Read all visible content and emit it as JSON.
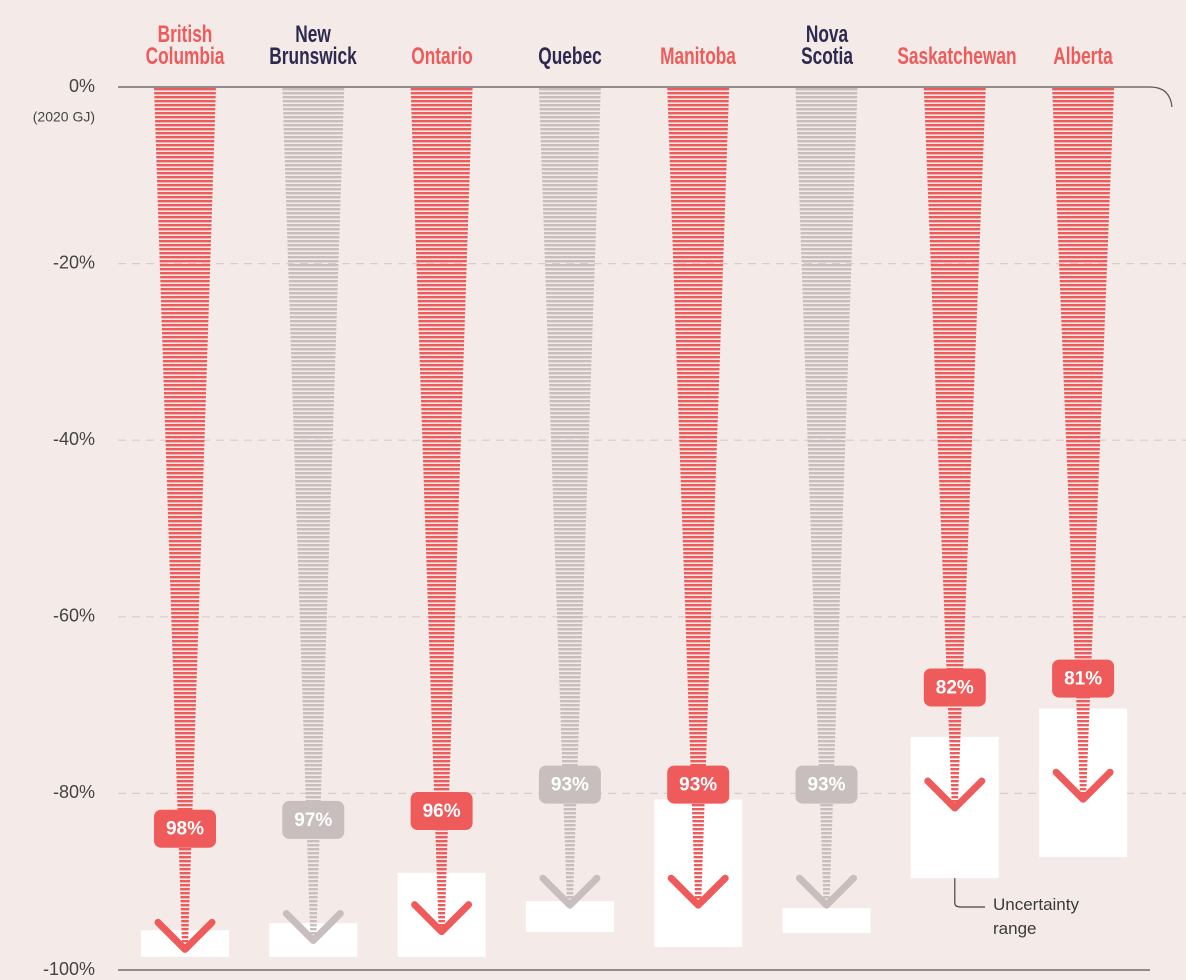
{
  "chart_data": {
    "type": "arrow",
    "categories": [
      "British\nColumbia",
      "New\nBrunswick",
      "Ontario",
      "Quebec",
      "Manitoba",
      "Nova\nScotia",
      "Saskatchewan",
      "Alberta"
    ],
    "colors": [
      "#ef5b5b",
      "#c9bebe",
      "#ef5b5b",
      "#c9bebe",
      "#ef5b5b",
      "#c9bebe",
      "#ef5b5b",
      "#ef5b5b"
    ],
    "label_colors": [
      "#ef5b5b",
      "#2e2a4f",
      "#ef5b5b",
      "#2e2a4f",
      "#ef5b5b",
      "#2e2a4f",
      "#ef5b5b",
      "#ef5b5b"
    ],
    "values": [
      -98,
      -97,
      -96,
      -93,
      -93,
      -93,
      -82,
      -81
    ],
    "value_labels": [
      "98%",
      "97%",
      "96%",
      "93%",
      "93%",
      "93%",
      "82%",
      "81%"
    ],
    "ranges": [
      [
        -95.5,
        -98.5
      ],
      [
        -94.7,
        -98.5
      ],
      [
        -89,
        -98.5
      ],
      [
        -92.2,
        -95.7
      ],
      [
        -80.7,
        -97.4
      ],
      [
        -93,
        -95.8
      ],
      [
        -73.6,
        -89.6
      ],
      [
        -70.4,
        -87.2
      ]
    ],
    "ylim": [
      0,
      -100
    ],
    "yticks": [
      {
        "value": 0,
        "label": "0%"
      },
      {
        "value": -20,
        "label": "-20%"
      },
      {
        "value": -40,
        "label": "-40%"
      },
      {
        "value": -60,
        "label": "-60%"
      },
      {
        "value": -80,
        "label": "-80%"
      },
      {
        "value": -100,
        "label": "-100%"
      }
    ],
    "y_note": "(2020 GJ)",
    "annotation": "Uncertainty\nrange",
    "grid": true
  }
}
